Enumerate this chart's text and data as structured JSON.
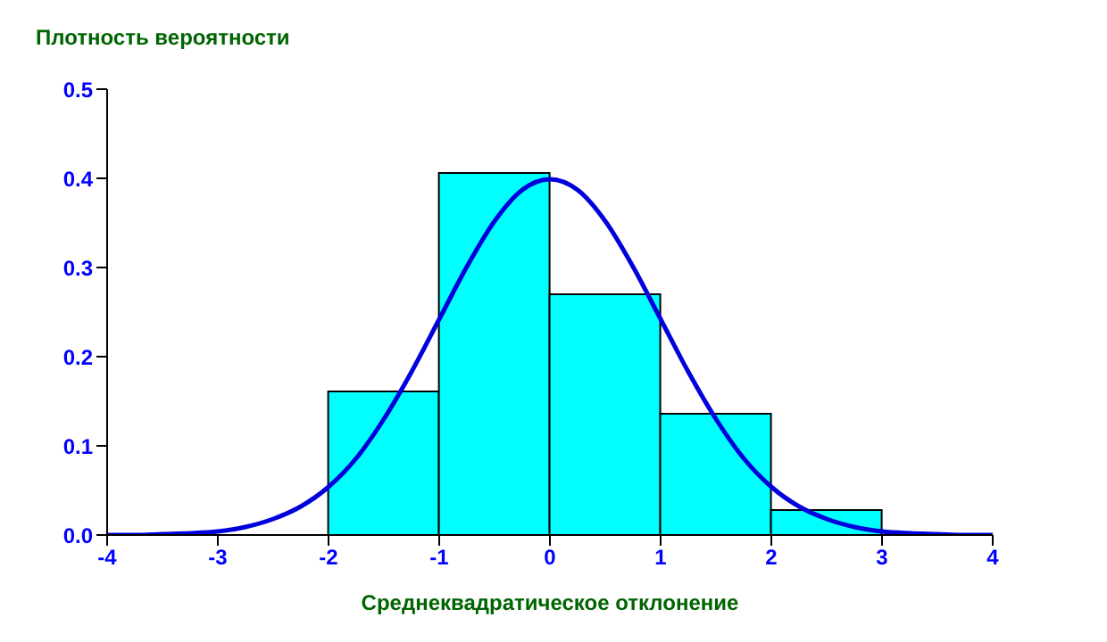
{
  "chart_data": {
    "type": "histogram",
    "title": "Плотность вероятности",
    "xlabel": "Среднеквадратическое отклонение",
    "bins": [
      -2,
      -1,
      0,
      1,
      2,
      3
    ],
    "values": [
      0.161,
      0.406,
      0.27,
      0.136,
      0.028
    ],
    "color": "#00ffff",
    "series": [
      {
        "type": "line",
        "color": "#0000dd",
        "x": [
          -4,
          -3.75,
          -3.5,
          -3.25,
          -3,
          -2.75,
          -2.5,
          -2.25,
          -2,
          -1.75,
          -1.5,
          -1.25,
          -1,
          -0.75,
          -0.5,
          -0.25,
          0,
          0.25,
          0.5,
          0.75,
          1,
          1.25,
          1.5,
          1.75,
          2,
          2.25,
          2.5,
          2.75,
          3,
          3.25,
          3.5,
          3.75,
          4
        ],
        "values": [
          0,
          0,
          0.001,
          0.002,
          0.004,
          0.009,
          0.018,
          0.032,
          0.054,
          0.086,
          0.13,
          0.183,
          0.242,
          0.301,
          0.352,
          0.387,
          0.399,
          0.387,
          0.352,
          0.301,
          0.242,
          0.183,
          0.13,
          0.086,
          0.054,
          0.032,
          0.018,
          0.009,
          0.004,
          0.002,
          0.001,
          0,
          0
        ]
      }
    ],
    "xlim": [
      -4,
      4
    ],
    "xticks": [
      -4,
      -3,
      -2,
      -1,
      0,
      1,
      2,
      3,
      4
    ],
    "ylim": [
      0,
      0.5
    ],
    "yticks": [
      {
        "value": 0,
        "label": "0.0"
      },
      0.1,
      0.2,
      0.3,
      0.4,
      0.5
    ],
    "grid": false,
    "legend": false,
    "marker": "none",
    "line_style": "solid"
  }
}
